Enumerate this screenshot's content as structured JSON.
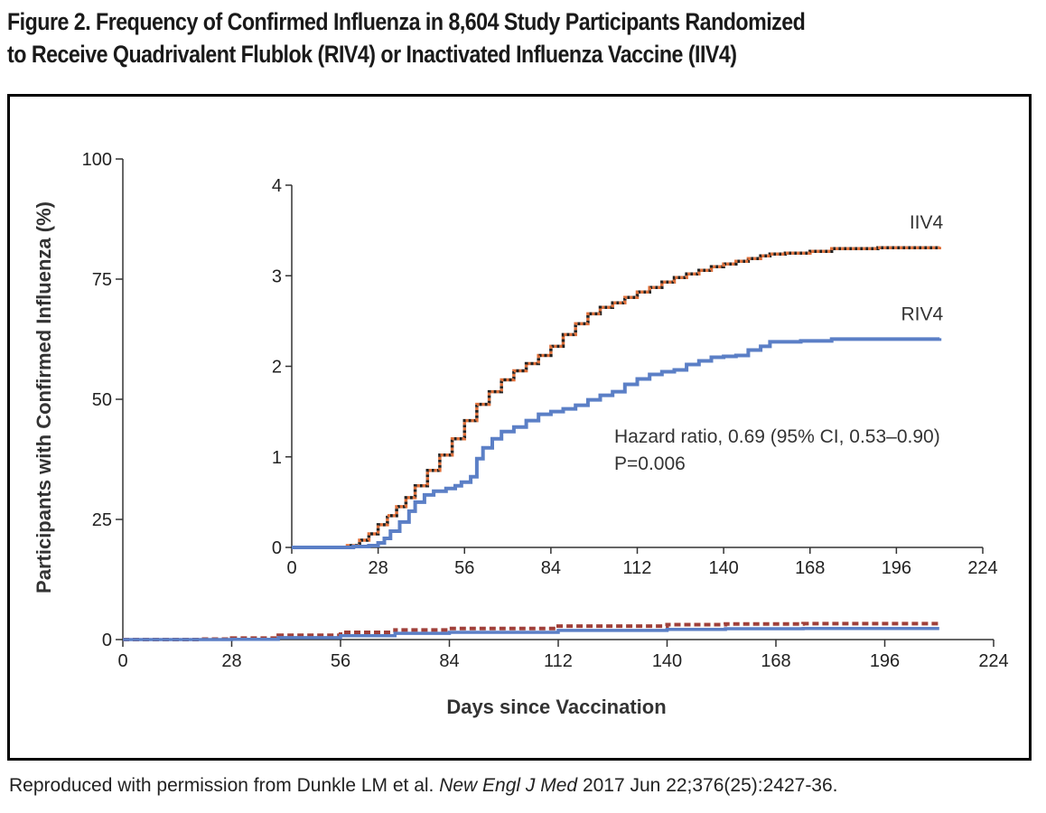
{
  "figure": {
    "title_line1": "Figure 2. Frequency of Confirmed Influenza in 8,604 Study Participants Randomized",
    "title_line2": "to Receive Quadrivalent Flublok (RIV4) or Inactivated Influenza Vaccine (IIV4)"
  },
  "caption": {
    "prefix": "Reproduced with permission from Dunkle LM et al. ",
    "journal": "New Engl J Med",
    "suffix": " 2017 Jun 22;376(25):2427-36."
  },
  "chart_data": [
    {
      "id": "main",
      "type": "line",
      "title": "",
      "xlabel": "Days since Vaccination",
      "ylabel": "Participants with Confirmed Influenza (%)",
      "xlim": [
        0,
        224
      ],
      "ylim": [
        0,
        100
      ],
      "xticks": [
        0,
        28,
        56,
        84,
        112,
        140,
        168,
        196,
        224
      ],
      "yticks": [
        0,
        25,
        50,
        75,
        100
      ],
      "xtick_labels": [
        "0",
        "28",
        "56",
        "84",
        "112",
        "140",
        "168",
        "196",
        "224"
      ],
      "ytick_labels": [
        "0",
        "25",
        "50",
        "75",
        "100"
      ],
      "series": [
        {
          "name": "IIV4",
          "color": "#a0403a",
          "dash": true,
          "x": [
            0,
            20,
            28,
            40,
            56,
            70,
            84,
            112,
            140,
            155,
            175,
            210
          ],
          "y": [
            0,
            0.1,
            0.3,
            0.9,
            1.5,
            2.0,
            2.3,
            2.8,
            3.1,
            3.25,
            3.3,
            3.3
          ]
        },
        {
          "name": "RIV4",
          "color": "#5b7fc6",
          "dash": false,
          "x": [
            0,
            28,
            40,
            56,
            70,
            84,
            112,
            140,
            155,
            175,
            210
          ],
          "y": [
            0,
            0.05,
            0.4,
            0.8,
            1.3,
            1.5,
            1.9,
            2.1,
            2.25,
            2.3,
            2.3
          ]
        }
      ]
    },
    {
      "id": "inset",
      "type": "line",
      "title": "",
      "xlim": [
        0,
        224
      ],
      "ylim": [
        0,
        4
      ],
      "xticks": [
        0,
        28,
        56,
        84,
        112,
        140,
        168,
        196,
        224
      ],
      "yticks": [
        0,
        1,
        2,
        3,
        4
      ],
      "xtick_labels": [
        "0",
        "28",
        "56",
        "84",
        "112",
        "140",
        "168",
        "196",
        "224"
      ],
      "ytick_labels": [
        "0",
        "1",
        "2",
        "3",
        "4"
      ],
      "annotation_line1": "Hazard ratio, 0.69 (95% CI, 0.53–0.90)",
      "annotation_line2": "P=0.006",
      "series": [
        {
          "name": "IIV4",
          "color": "#222222",
          "dot_color": "#e0703a",
          "x": [
            0,
            18,
            22,
            25,
            28,
            31,
            34,
            37,
            40,
            44,
            48,
            52,
            56,
            60,
            64,
            68,
            72,
            76,
            80,
            84,
            88,
            92,
            96,
            100,
            104,
            108,
            112,
            116,
            120,
            124,
            128,
            132,
            136,
            140,
            144,
            148,
            152,
            155,
            160,
            168,
            175,
            190,
            210
          ],
          "y": [
            0,
            0.02,
            0.08,
            0.15,
            0.25,
            0.35,
            0.45,
            0.55,
            0.68,
            0.85,
            1.02,
            1.2,
            1.4,
            1.58,
            1.72,
            1.85,
            1.95,
            2.03,
            2.12,
            2.22,
            2.35,
            2.47,
            2.58,
            2.65,
            2.7,
            2.76,
            2.82,
            2.87,
            2.93,
            2.98,
            3.02,
            3.06,
            3.1,
            3.13,
            3.16,
            3.19,
            3.22,
            3.24,
            3.25,
            3.27,
            3.3,
            3.31,
            3.32
          ]
        },
        {
          "name": "RIV4",
          "color": "#5b7fc6",
          "x": [
            0,
            20,
            25,
            28,
            30,
            32,
            35,
            38,
            40,
            43,
            46,
            48,
            50,
            53,
            55,
            58,
            60,
            62,
            65,
            68,
            72,
            76,
            80,
            84,
            88,
            92,
            96,
            100,
            104,
            108,
            112,
            116,
            120,
            124,
            128,
            132,
            136,
            140,
            144,
            148,
            152,
            155,
            165,
            175,
            190,
            210
          ],
          "y": [
            0,
            0.01,
            0.02,
            0.05,
            0.1,
            0.18,
            0.28,
            0.4,
            0.5,
            0.58,
            0.62,
            0.62,
            0.65,
            0.68,
            0.72,
            0.78,
            0.98,
            1.1,
            1.2,
            1.28,
            1.33,
            1.4,
            1.47,
            1.5,
            1.53,
            1.57,
            1.63,
            1.68,
            1.72,
            1.8,
            1.86,
            1.91,
            1.94,
            1.96,
            2.02,
            2.06,
            2.1,
            2.11,
            2.12,
            2.18,
            2.22,
            2.27,
            2.28,
            2.3,
            2.3,
            2.31
          ]
        }
      ]
    }
  ]
}
